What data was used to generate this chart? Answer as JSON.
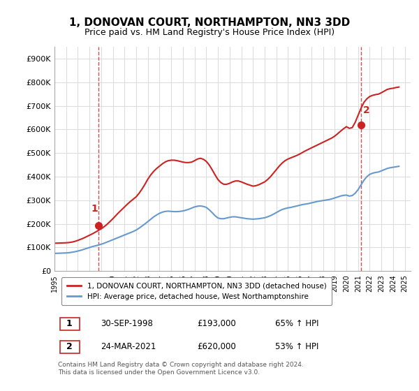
{
  "title": "1, DONOVAN COURT, NORTHAMPTON, NN3 3DD",
  "subtitle": "Price paid vs. HM Land Registry's House Price Index (HPI)",
  "ylabel": "",
  "xlim_start": 1995.0,
  "xlim_end": 2025.5,
  "ylim": [
    0,
    950000
  ],
  "yticks": [
    0,
    100000,
    200000,
    300000,
    400000,
    500000,
    600000,
    700000,
    800000,
    900000
  ],
  "ytick_labels": [
    "£0",
    "£100K",
    "£200K",
    "£300K",
    "£400K",
    "£500K",
    "£600K",
    "£700K",
    "£800K",
    "£900K"
  ],
  "background_color": "#ffffff",
  "plot_bg_color": "#ffffff",
  "grid_color": "#dddddd",
  "hpi_color": "#6699cc",
  "price_color": "#cc2222",
  "dashed_vline_color": "#cc2222",
  "point1_date": 1998.75,
  "point1_price": 193000,
  "point2_date": 2021.23,
  "point2_price": 620000,
  "legend_label_price": "1, DONOVAN COURT, NORTHAMPTON, NN3 3DD (detached house)",
  "legend_label_hpi": "HPI: Average price, detached house, West Northamptonshire",
  "footnote": "Contains HM Land Registry data © Crown copyright and database right 2024.\nThis data is licensed under the Open Government Licence v3.0.",
  "table_row1": [
    "1",
    "30-SEP-1998",
    "£193,000",
    "65% ↑ HPI"
  ],
  "table_row2": [
    "2",
    "24-MAR-2021",
    "£620,000",
    "53% ↑ HPI"
  ],
  "hpi_data_x": [
    1995.0,
    1995.25,
    1995.5,
    1995.75,
    1996.0,
    1996.25,
    1996.5,
    1996.75,
    1997.0,
    1997.25,
    1997.5,
    1997.75,
    1998.0,
    1998.25,
    1998.5,
    1998.75,
    1999.0,
    1999.25,
    1999.5,
    1999.75,
    2000.0,
    2000.25,
    2000.5,
    2000.75,
    2001.0,
    2001.25,
    2001.5,
    2001.75,
    2002.0,
    2002.25,
    2002.5,
    2002.75,
    2003.0,
    2003.25,
    2003.5,
    2003.75,
    2004.0,
    2004.25,
    2004.5,
    2004.75,
    2005.0,
    2005.25,
    2005.5,
    2005.75,
    2006.0,
    2006.25,
    2006.5,
    2006.75,
    2007.0,
    2007.25,
    2007.5,
    2007.75,
    2008.0,
    2008.25,
    2008.5,
    2008.75,
    2009.0,
    2009.25,
    2009.5,
    2009.75,
    2010.0,
    2010.25,
    2010.5,
    2010.75,
    2011.0,
    2011.25,
    2011.5,
    2011.75,
    2012.0,
    2012.25,
    2012.5,
    2012.75,
    2013.0,
    2013.25,
    2013.5,
    2013.75,
    2014.0,
    2014.25,
    2014.5,
    2014.75,
    2015.0,
    2015.25,
    2015.5,
    2015.75,
    2016.0,
    2016.25,
    2016.5,
    2016.75,
    2017.0,
    2017.25,
    2017.5,
    2017.75,
    2018.0,
    2018.25,
    2018.5,
    2018.75,
    2019.0,
    2019.25,
    2019.5,
    2019.75,
    2020.0,
    2020.25,
    2020.5,
    2020.75,
    2021.0,
    2021.25,
    2021.5,
    2021.75,
    2022.0,
    2022.25,
    2022.5,
    2022.75,
    2023.0,
    2023.25,
    2023.5,
    2023.75,
    2024.0,
    2024.25,
    2024.5
  ],
  "hpi_data_y": [
    75000,
    75500,
    76000,
    76500,
    77000,
    78000,
    80000,
    82000,
    85000,
    88000,
    92000,
    96000,
    100000,
    104000,
    107000,
    110000,
    114000,
    118000,
    123000,
    128000,
    133000,
    138000,
    143000,
    148000,
    153000,
    158000,
    163000,
    168000,
    174000,
    182000,
    191000,
    200000,
    210000,
    220000,
    230000,
    238000,
    245000,
    250000,
    253000,
    254000,
    253000,
    252000,
    252000,
    253000,
    255000,
    258000,
    262000,
    267000,
    272000,
    275000,
    276000,
    274000,
    270000,
    260000,
    248000,
    235000,
    225000,
    222000,
    222000,
    225000,
    228000,
    230000,
    230000,
    228000,
    226000,
    224000,
    222000,
    221000,
    220000,
    221000,
    222000,
    224000,
    226000,
    230000,
    235000,
    241000,
    248000,
    255000,
    261000,
    265000,
    268000,
    270000,
    273000,
    276000,
    279000,
    282000,
    284000,
    286000,
    289000,
    292000,
    295000,
    297000,
    299000,
    301000,
    303000,
    306000,
    310000,
    314000,
    318000,
    321000,
    322000,
    318000,
    320000,
    330000,
    345000,
    365000,
    385000,
    400000,
    410000,
    415000,
    418000,
    420000,
    425000,
    430000,
    435000,
    438000,
    440000,
    442000,
    444000
  ],
  "price_data_x": [
    1995.0,
    1995.25,
    1995.5,
    1995.75,
    1996.0,
    1996.25,
    1996.5,
    1996.75,
    1997.0,
    1997.25,
    1997.5,
    1997.75,
    1998.0,
    1998.25,
    1998.5,
    1998.75,
    1999.0,
    1999.25,
    1999.5,
    1999.75,
    2000.0,
    2000.25,
    2000.5,
    2000.75,
    2001.0,
    2001.25,
    2001.5,
    2001.75,
    2002.0,
    2002.25,
    2002.5,
    2002.75,
    2003.0,
    2003.25,
    2003.5,
    2003.75,
    2004.0,
    2004.25,
    2004.5,
    2004.75,
    2005.0,
    2005.25,
    2005.5,
    2005.75,
    2006.0,
    2006.25,
    2006.5,
    2006.75,
    2007.0,
    2007.25,
    2007.5,
    2007.75,
    2008.0,
    2008.25,
    2008.5,
    2008.75,
    2009.0,
    2009.25,
    2009.5,
    2009.75,
    2010.0,
    2010.25,
    2010.5,
    2010.75,
    2011.0,
    2011.25,
    2011.5,
    2011.75,
    2012.0,
    2012.25,
    2012.5,
    2012.75,
    2013.0,
    2013.25,
    2013.5,
    2013.75,
    2014.0,
    2014.25,
    2014.5,
    2014.75,
    2015.0,
    2015.25,
    2015.5,
    2015.75,
    2016.0,
    2016.25,
    2016.5,
    2016.75,
    2017.0,
    2017.25,
    2017.5,
    2017.75,
    2018.0,
    2018.25,
    2018.5,
    2018.75,
    2019.0,
    2019.25,
    2019.5,
    2019.75,
    2020.0,
    2020.25,
    2020.5,
    2020.75,
    2021.0,
    2021.25,
    2021.5,
    2021.75,
    2022.0,
    2022.25,
    2022.5,
    2022.75,
    2023.0,
    2023.25,
    2023.5,
    2023.75,
    2024.0,
    2024.25,
    2024.5
  ],
  "price_data_y": [
    118000,
    118500,
    119000,
    119500,
    120000,
    121000,
    123000,
    126000,
    130000,
    135000,
    140000,
    146000,
    152000,
    158000,
    165000,
    172000,
    179000,
    188000,
    198000,
    210000,
    222000,
    235000,
    248000,
    260000,
    272000,
    284000,
    295000,
    305000,
    315000,
    330000,
    348000,
    368000,
    390000,
    408000,
    423000,
    435000,
    445000,
    455000,
    463000,
    468000,
    470000,
    470000,
    468000,
    465000,
    462000,
    460000,
    460000,
    462000,
    468000,
    475000,
    478000,
    474000,
    465000,
    450000,
    430000,
    408000,
    388000,
    375000,
    368000,
    368000,
    372000,
    378000,
    382000,
    382000,
    378000,
    373000,
    368000,
    364000,
    360000,
    362000,
    366000,
    372000,
    378000,
    388000,
    400000,
    415000,
    430000,
    445000,
    458000,
    468000,
    475000,
    480000,
    485000,
    490000,
    496000,
    503000,
    510000,
    516000,
    522000,
    528000,
    534000,
    540000,
    546000,
    552000,
    558000,
    564000,
    572000,
    582000,
    593000,
    603000,
    612000,
    605000,
    608000,
    630000,
    660000,
    690000,
    715000,
    730000,
    740000,
    745000,
    748000,
    750000,
    756000,
    763000,
    770000,
    773000,
    775000,
    778000,
    780000
  ]
}
